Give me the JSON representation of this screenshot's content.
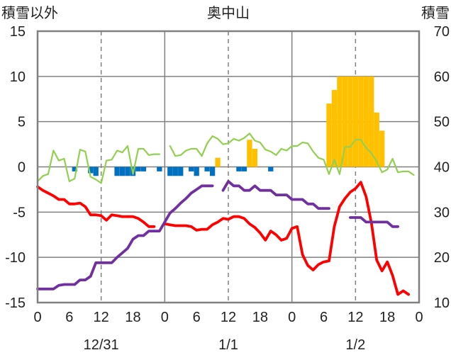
{
  "chart_data": {
    "type": "bar+line",
    "title": "奥中山",
    "ylabel_left": "積雪以外",
    "ylabel_right": "積雪",
    "ylim_left": [
      -15,
      15
    ],
    "ylim_right": [
      10,
      70
    ],
    "yticks_left": [
      "15",
      "10",
      "5",
      "0",
      "-5",
      "-10",
      "-15"
    ],
    "yticks_right": [
      "70",
      "60",
      "50",
      "40",
      "30",
      "20",
      "10"
    ],
    "xlim": [
      0,
      72
    ],
    "x_tick_labels": [
      "0",
      "6",
      "12",
      "18",
      "0",
      "6",
      "12",
      "18",
      "0",
      "6",
      "12",
      "18",
      "0"
    ],
    "date_labels": [
      {
        "label": "12/31",
        "hour": 12
      },
      {
        "label": "1/1",
        "hour": 36
      },
      {
        "label": "1/2",
        "hour": 60
      }
    ],
    "dashed_hours": [
      12,
      36,
      60
    ],
    "day_boundaries": [
      24,
      48
    ],
    "grid": "horizontal at each left tick; solid day boundaries; dashed at noon",
    "colors": {
      "snow_depth": "#ffc000",
      "precip_negative": "#0070c0",
      "temperature": "#ff0000",
      "dewpoint": "#7030a0",
      "green_series": "#92d050",
      "axis": "#808080"
    },
    "bars": [
      {
        "hour": 7,
        "value": -0.5
      },
      {
        "hour": 10,
        "value": -0.7
      },
      {
        "hour": 11,
        "value": -1.0
      },
      {
        "hour": 15,
        "value": -1.0
      },
      {
        "hour": 16,
        "value": -1.0
      },
      {
        "hour": 17,
        "value": -1.0
      },
      {
        "hour": 18,
        "value": -1.0
      },
      {
        "hour": 19,
        "value": -0.5
      },
      {
        "hour": 20,
        "value": -0.5
      },
      {
        "hour": 23,
        "value": -0.5
      },
      {
        "hour": 25,
        "value": -1.0
      },
      {
        "hour": 26,
        "value": -1.0
      },
      {
        "hour": 27,
        "value": -1.0
      },
      {
        "hour": 29,
        "value": -0.5
      },
      {
        "hour": 30,
        "value": -1.0
      },
      {
        "hour": 32,
        "value": -0.5
      },
      {
        "hour": 33,
        "value": -1.0
      },
      {
        "hour": 34,
        "value": 1.0
      },
      {
        "hour": 38,
        "value": -0.5
      },
      {
        "hour": 39,
        "value": -0.5
      },
      {
        "hour": 40,
        "value": 3.0
      },
      {
        "hour": 41,
        "value": 2.0
      },
      {
        "hour": 42,
        "value": 0.0
      },
      {
        "hour": 44,
        "value": -0.5
      },
      {
        "hour": 55,
        "value": 7.0
      },
      {
        "hour": 56,
        "value": 8.5
      },
      {
        "hour": 57,
        "value": 10.0
      },
      {
        "hour": 58,
        "value": 10.0
      },
      {
        "hour": 59,
        "value": 10.0
      },
      {
        "hour": 60,
        "value": 10.0
      },
      {
        "hour": 61,
        "value": 10.0
      },
      {
        "hour": 62,
        "value": 10.0
      },
      {
        "hour": 63,
        "value": 10.0
      },
      {
        "hour": 64,
        "value": 6.0
      },
      {
        "hour": 65,
        "value": 4.0
      }
    ],
    "series": [
      {
        "color": "#92d050",
        "x": [
          0,
          1,
          2,
          3,
          4,
          5,
          6,
          7,
          8,
          9,
          10,
          11,
          12,
          13,
          14,
          15,
          16,
          17,
          18,
          19,
          20,
          21,
          22,
          23,
          24,
          25,
          26,
          27,
          28,
          29,
          30,
          31,
          32,
          33,
          34,
          35,
          36,
          37,
          38,
          39,
          40,
          41,
          42,
          43,
          44,
          45,
          46,
          47,
          48,
          49,
          50,
          51,
          52,
          53,
          54,
          55,
          56,
          57,
          58,
          59,
          60,
          61,
          62,
          63,
          64,
          65,
          66,
          67,
          68,
          69,
          70,
          71
        ],
        "values": [
          -1.6,
          -1.0,
          -0.8,
          1.8,
          0.7,
          0.9,
          -1.6,
          -1.3,
          1.9,
          1.7,
          -1.1,
          -1.4,
          -1.8,
          0.7,
          0.8,
          1.8,
          1.6,
          2.3,
          -0.8,
          2.0,
          2.0,
          1.3,
          1.4,
          1.4,
          null,
          2.3,
          1.2,
          1.3,
          1.8,
          2.0,
          2.0,
          1.2,
          2.6,
          3.4,
          3.1,
          2.5,
          2.6,
          3.1,
          2.9,
          3.2,
          3.7,
          2.9,
          2.7,
          1.9,
          1.7,
          1.3,
          2.0,
          1.8,
          2.3,
          2.3,
          2.7,
          2.6,
          1.7,
          1.0,
          0.8,
          -0.8,
          0.8,
          -0.8,
          2.2,
          2.2,
          3.0,
          3.0,
          2.1,
          1.5,
          0.6,
          -0.6,
          -0.3,
          0.9,
          -0.6,
          -0.5,
          -0.5,
          -0.9
        ]
      },
      {
        "color": "#ff0000",
        "x": [
          0,
          1,
          2,
          3,
          4,
          5,
          6,
          7,
          8,
          9,
          10,
          11,
          12,
          13,
          14,
          15,
          16,
          17,
          18,
          19,
          20,
          21,
          22,
          23,
          24,
          25,
          26,
          27,
          28,
          29,
          30,
          31,
          32,
          33,
          34,
          35,
          36,
          37,
          38,
          39,
          40,
          41,
          42,
          43,
          44,
          45,
          46,
          47,
          48,
          49,
          50,
          51,
          52,
          53,
          54,
          55,
          56,
          57,
          58,
          59,
          60,
          61,
          62,
          63,
          64,
          65,
          66,
          67,
          68,
          69,
          70,
          71
        ],
        "values": [
          -2.2,
          -2.6,
          -2.9,
          -3.2,
          -3.6,
          -3.6,
          -4.1,
          -4.1,
          -4.0,
          -4.4,
          -5.3,
          -5.3,
          -5.4,
          -5.9,
          -5.3,
          -5.4,
          -5.5,
          -5.5,
          -5.5,
          -5.7,
          -6.1,
          -6.6,
          -6.6,
          null,
          -6.3,
          -6.4,
          -6.5,
          -6.5,
          -6.5,
          -6.6,
          -7.0,
          -6.9,
          -6.9,
          -6.4,
          -6.1,
          -5.7,
          -5.8,
          -5.5,
          -5.5,
          -5.7,
          -6.3,
          -6.7,
          -7.3,
          -8.1,
          -7.1,
          -7.5,
          -8.1,
          -7.9,
          -6.8,
          -6.6,
          -9.7,
          -10.9,
          -11.4,
          -10.8,
          -10.5,
          -10.4,
          -6.6,
          -4.4,
          -3.5,
          -2.8,
          -2.4,
          -1.7,
          -3.3,
          -6.2,
          -10.3,
          -11.5,
          -10.5,
          -12.0,
          -14.1,
          -13.7,
          -14.1,
          null
        ]
      },
      {
        "color": "#7030a0",
        "x": [
          0,
          1,
          2,
          3,
          4,
          5,
          6,
          7,
          8,
          9,
          10,
          11,
          12,
          13,
          14,
          15,
          16,
          17,
          18,
          19,
          20,
          21,
          22,
          23,
          24,
          25,
          26,
          27,
          28,
          29,
          30,
          31,
          32,
          33,
          34,
          35,
          36,
          37,
          38,
          39,
          40,
          41,
          42,
          43,
          44,
          45,
          46,
          47,
          48,
          49,
          50,
          51,
          52,
          53,
          54,
          55,
          56,
          57,
          58,
          59,
          60,
          61,
          62,
          63,
          64,
          65,
          66,
          67,
          68,
          69,
          70,
          71
        ],
        "values": [
          -13.5,
          -13.5,
          -13.5,
          -13.5,
          -13.1,
          -13.0,
          -13.0,
          -13.0,
          -12.5,
          -12.5,
          -12.1,
          -10.6,
          -10.6,
          -10.6,
          -10.6,
          -10.0,
          -9.5,
          -9.0,
          -8.0,
          -7.6,
          -7.6,
          -7.1,
          -7.1,
          -7.1,
          -6.1,
          -5.1,
          -4.6,
          -4.0,
          -3.5,
          -2.9,
          -2.5,
          -2.1,
          -2.1,
          -2.1,
          null,
          -2.6,
          -1.6,
          -2.1,
          -2.1,
          -2.6,
          -2.6,
          -2.1,
          -2.6,
          -2.6,
          -2.6,
          -3.1,
          -3.1,
          -3.1,
          -3.6,
          -3.6,
          -3.6,
          -4.1,
          -4.1,
          -4.6,
          -4.6,
          -4.6,
          null,
          null,
          null,
          -5.6,
          -5.6,
          -5.6,
          -6.1,
          -6.1,
          -6.1,
          -6.1,
          -6.1,
          -6.6,
          -6.6,
          null,
          null,
          null
        ]
      }
    ]
  }
}
